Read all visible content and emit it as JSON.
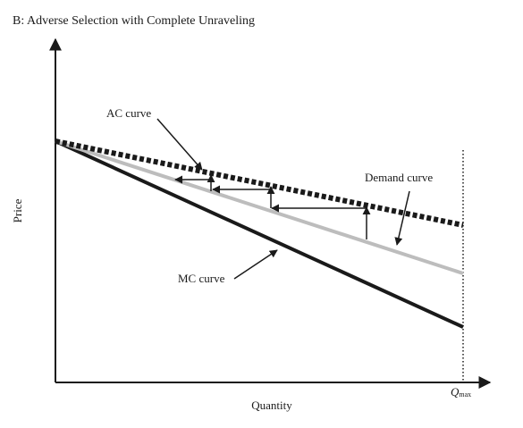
{
  "title": "B: Adverse Selection with Complete Unraveling",
  "xlabel": "Quantity",
  "ylabel": "Price",
  "qmax_label": {
    "main": "Q",
    "sub": "max"
  },
  "curve_labels": {
    "ac": "AC curve",
    "demand": "Demand curve",
    "mc": "MC curve"
  },
  "colors": {
    "axis": "#1a1a1a",
    "ac_curve": "#1a1a1a",
    "demand_curve": "#bdbdbd",
    "mc_curve": "#1a1a1a",
    "arrow": "#1a1a1a"
  },
  "icons": {
    "axis_arrowheads": "triangle-arrow",
    "label_pointers": "arrow-pointer"
  }
}
